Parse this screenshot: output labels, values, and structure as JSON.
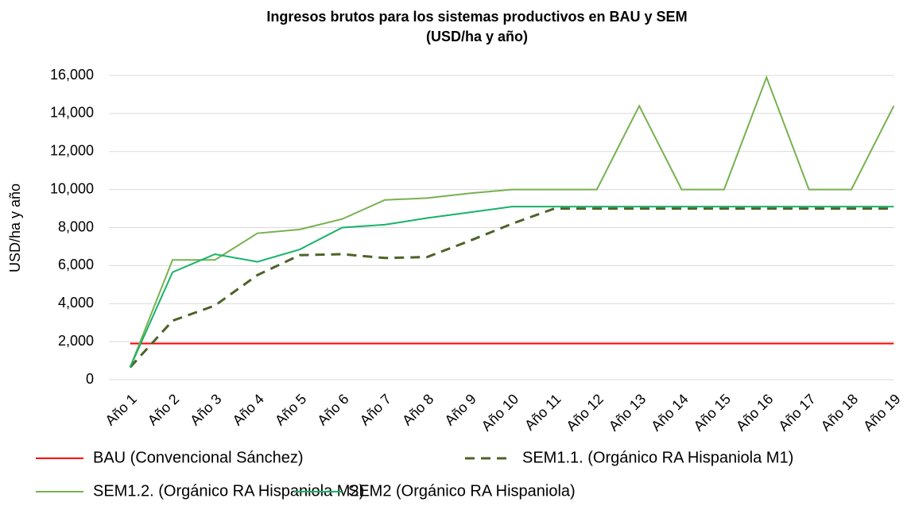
{
  "chart_data": {
    "type": "line",
    "title": "Ingresos brutos para los sistemas productivos en BAU y SEM",
    "subtitle": "(USD/ha y año)",
    "y_label": "USD/ha y año",
    "categories": [
      "Año 1",
      "Año 2",
      "Año 3",
      "Año 4",
      "Año 5",
      "Año 6",
      "Año 7",
      "Año 8",
      "Año 9",
      "Año 10",
      "Año 11",
      "Año 12",
      "Año 13",
      "Año 14",
      "Año 15",
      "Año 16",
      "Año 17",
      "Año 18",
      "Año 19"
    ],
    "series": [
      {
        "name": "BAU (Convencional Sánchez)",
        "color": "#ff0000",
        "dashed": false,
        "values": [
          1900,
          1900,
          1900,
          1900,
          1900,
          1900,
          1900,
          1900,
          1900,
          1900,
          1900,
          1900,
          1900,
          1900,
          1900,
          1900,
          1900,
          1900,
          1900
        ]
      },
      {
        "name": "SEM1.1. (Orgánico RA Hispaniola M1)",
        "color": "#4f6228",
        "dashed": true,
        "values": [
          650,
          3100,
          3900,
          5500,
          6550,
          6600,
          6400,
          6450,
          7300,
          8200,
          9000,
          9000,
          9000,
          9000,
          9000,
          9000,
          9000,
          9000,
          9000
        ]
      },
      {
        "name": "SEM1.2. (Orgánico RA Hispaniola M2)",
        "color": "#77b150",
        "dashed": false,
        "values": [
          650,
          6300,
          6300,
          7700,
          7900,
          8450,
          9450,
          9550,
          9800,
          10000,
          10000,
          10000,
          14400,
          10000,
          10000,
          15900,
          10000,
          10000,
          14400
        ]
      },
      {
        "name": "SEM2 (Orgánico RA Hispaniola)",
        "color": "#16b36a",
        "dashed": false,
        "values": [
          650,
          5650,
          6600,
          6200,
          6850,
          8000,
          8150,
          8500,
          8800,
          9100,
          9100,
          9100,
          9100,
          9100,
          9100,
          9100,
          9100,
          9100,
          9100
        ]
      }
    ],
    "ylim": [
      0,
      16000
    ],
    "yticks": [
      0,
      {
        "value": 2000,
        "label": "2,000"
      },
      {
        "value": 4000,
        "label": "4,000"
      },
      {
        "value": 6000,
        "label": "6,000"
      },
      {
        "value": 8000,
        "label": "8,000"
      },
      {
        "value": 10000,
        "label": "10,000"
      },
      {
        "value": 12000,
        "label": "12,000"
      },
      {
        "value": 14000,
        "label": "14,000"
      },
      {
        "value": 16000,
        "label": "16,000"
      }
    ],
    "grid": true,
    "legend": "bottom"
  }
}
